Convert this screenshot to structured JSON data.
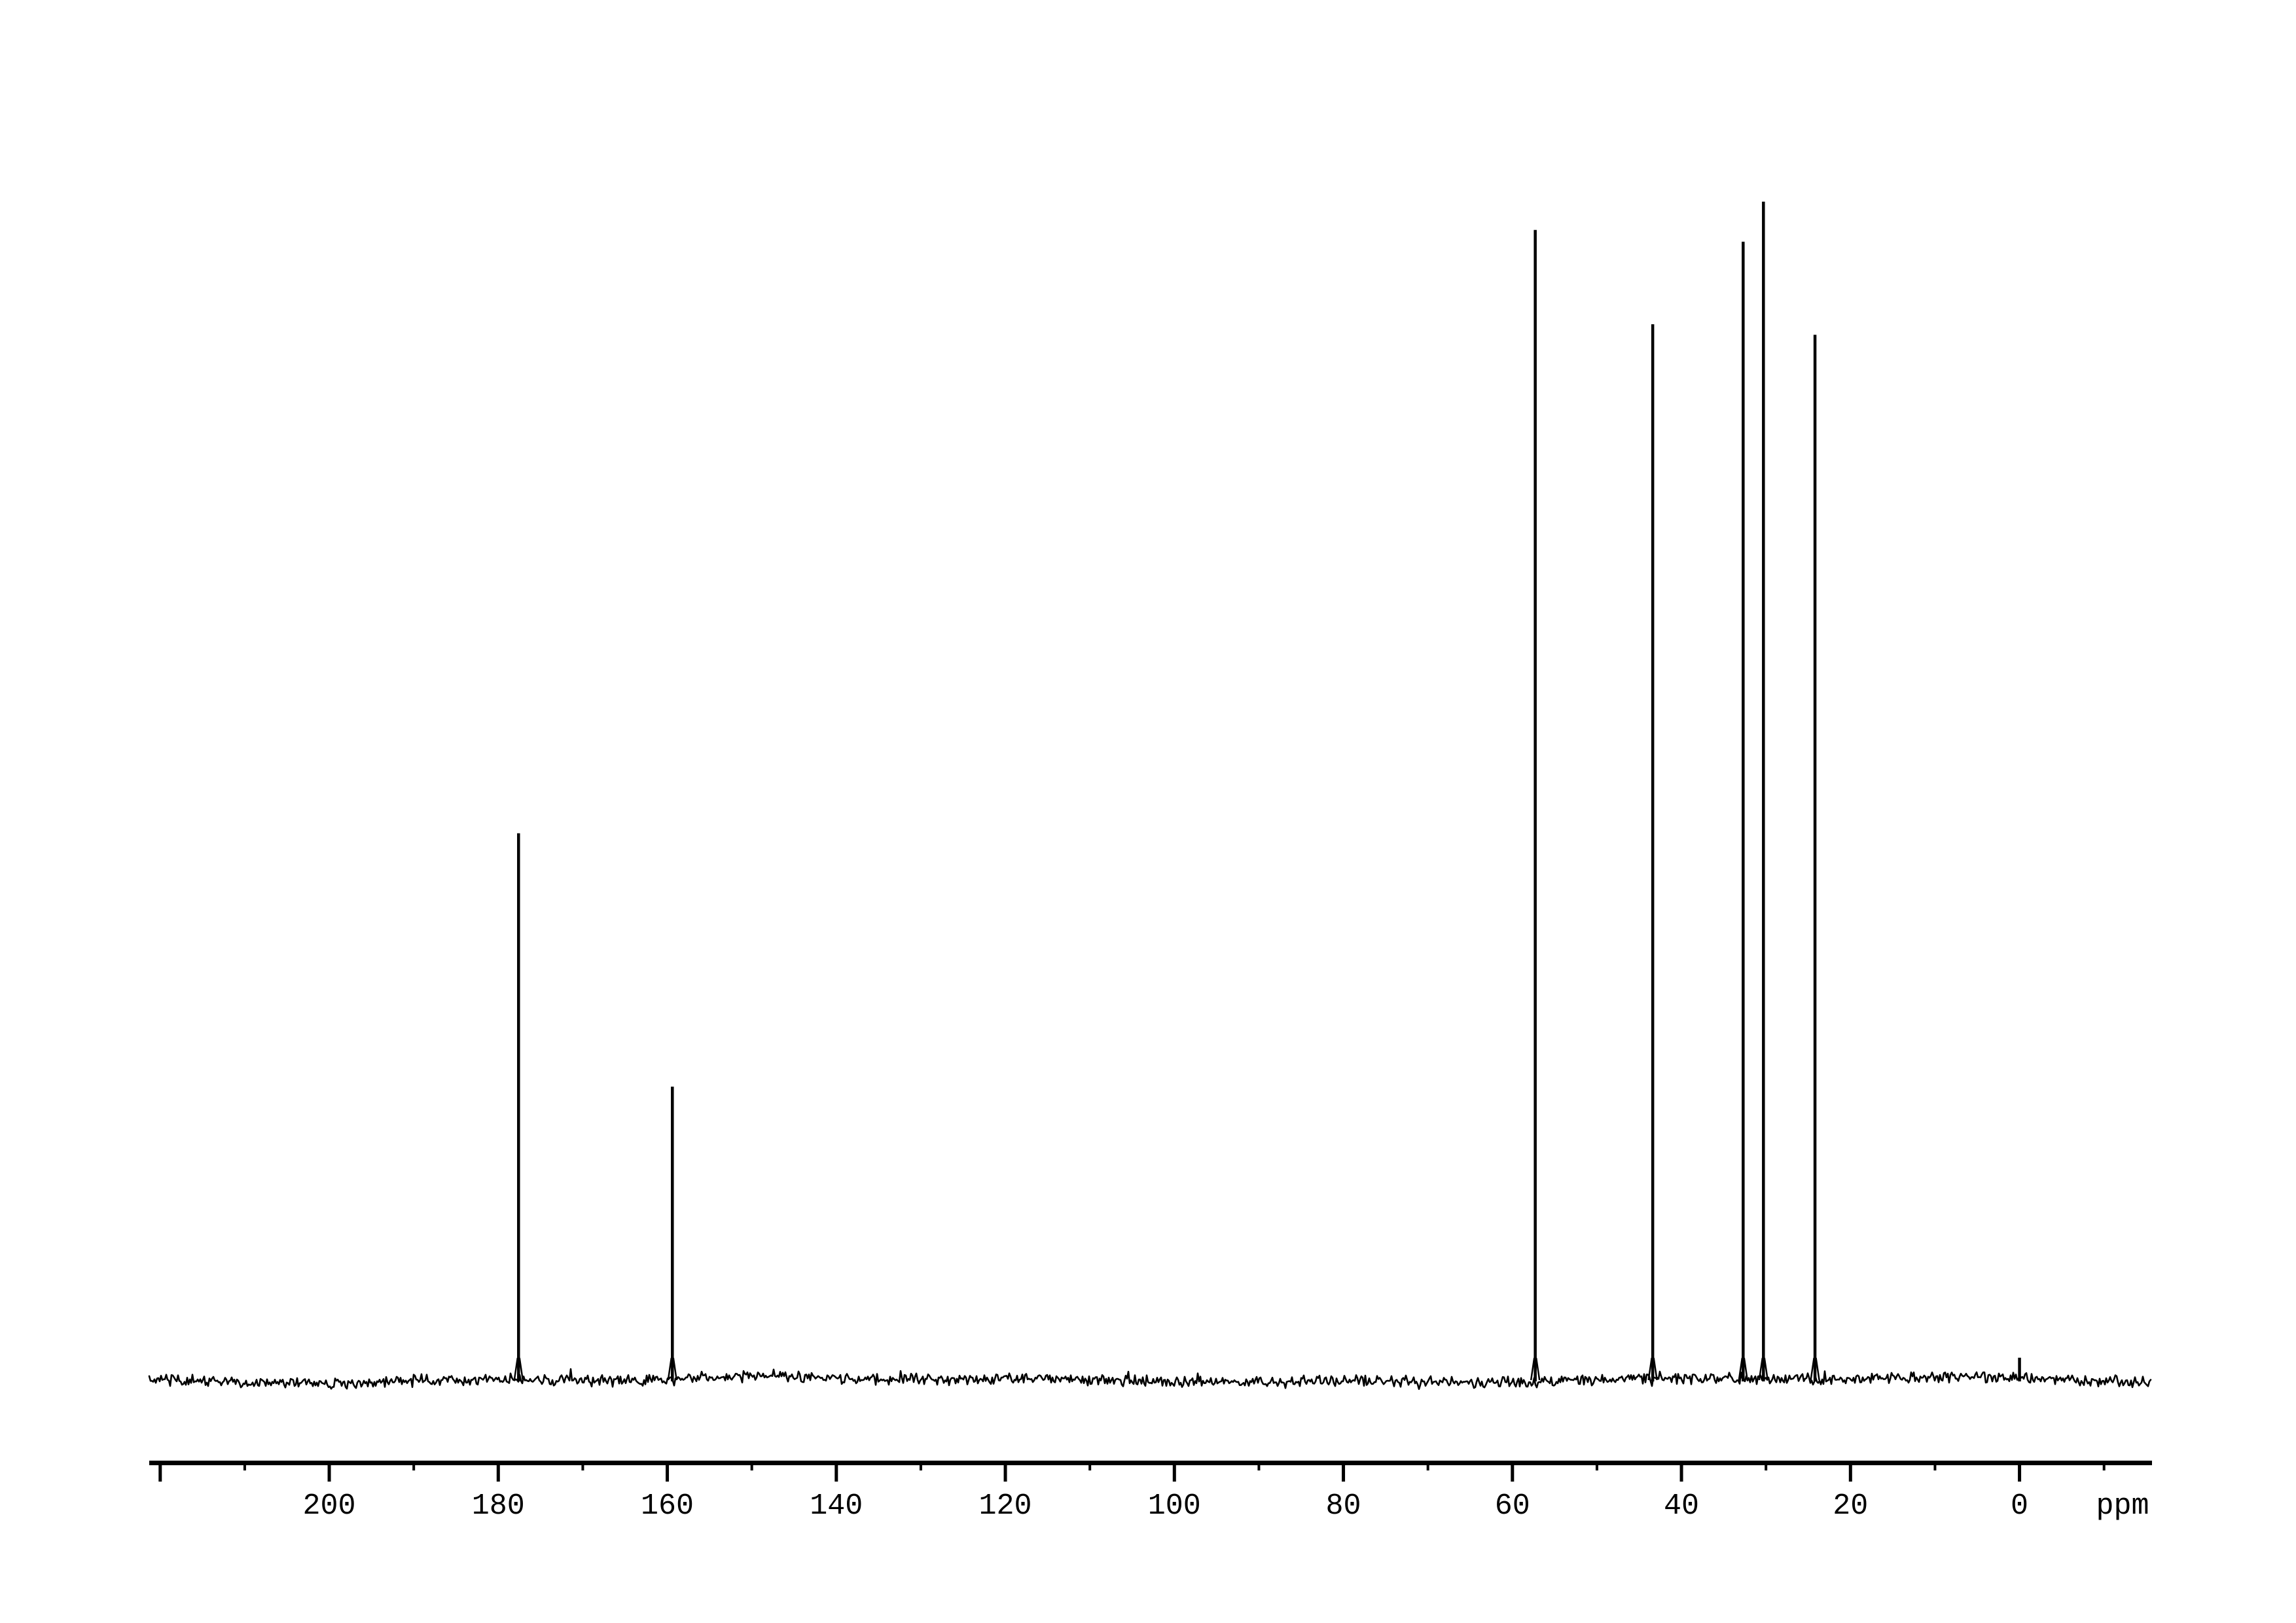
{
  "figure": {
    "kind": "13C NMR spectrum",
    "background_color": "#ffffff",
    "foreground_color": "#000000"
  },
  "chart_data": {
    "type": "line",
    "title": "",
    "xlabel": "ppm",
    "ylabel": "",
    "x_axis": {
      "unit_label": "ppm",
      "left_ppm": 221.3,
      "right_ppm": -15.6,
      "labeled_major_ticks": [
        200,
        180,
        160,
        140,
        120,
        100,
        80,
        60,
        40,
        20,
        0
      ],
      "tick_labels": [
        "200",
        "180",
        "160",
        "140",
        "120",
        "100",
        "80",
        "60",
        "40",
        "20",
        "0"
      ],
      "unlabeled_major_ticks": [
        220
      ],
      "minor_ticks": [
        210,
        190,
        170,
        150,
        130,
        110,
        90,
        70,
        50,
        30,
        10,
        -10
      ]
    },
    "y_axis": {
      "visible": false
    },
    "grid": false,
    "legend": false,
    "peaks": [
      {
        "ppm": 177.6,
        "rel_intensity": 0.464
      },
      {
        "ppm": 159.4,
        "rel_intensity": 0.249
      },
      {
        "ppm": 57.3,
        "rel_intensity": 0.976
      },
      {
        "ppm": 43.4,
        "rel_intensity": 0.896
      },
      {
        "ppm": 32.7,
        "rel_intensity": 0.966
      },
      {
        "ppm": 30.3,
        "rel_intensity": 1.0
      },
      {
        "ppm": 24.2,
        "rel_intensity": 0.887
      },
      {
        "ppm": 0.0,
        "rel_intensity": 0.019
      }
    ],
    "baseline_noise": {
      "visible": true,
      "relative_amplitude": 0.005
    }
  }
}
